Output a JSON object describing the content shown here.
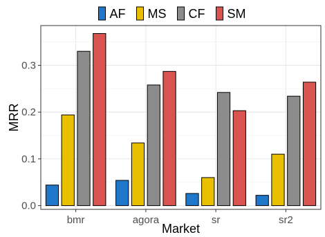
{
  "chart_data": {
    "type": "bar",
    "title": "",
    "xlabel": "Market",
    "ylabel": "MRR",
    "categories": [
      "bmr",
      "agora",
      "sr",
      "sr2"
    ],
    "series": [
      {
        "name": "AF",
        "color": "#1f77c9",
        "values": [
          0.044,
          0.054,
          0.026,
          0.022
        ]
      },
      {
        "name": "MS",
        "color": "#e9c000",
        "values": [
          0.194,
          0.134,
          0.06,
          0.11
        ]
      },
      {
        "name": "CF",
        "color": "#8c8c8c",
        "values": [
          0.33,
          0.258,
          0.242,
          0.234
        ]
      },
      {
        "name": "SM",
        "color": "#d9534f",
        "values": [
          0.368,
          0.287,
          0.203,
          0.264
        ]
      }
    ],
    "ylim": [
      -0.008,
      0.385
    ],
    "yticks": [
      0.0,
      0.1,
      0.2,
      0.3
    ],
    "ytick_labels": [
      "0.0",
      "0.1",
      "0.2",
      "0.3"
    ],
    "grid": true,
    "legend_position": "top"
  }
}
